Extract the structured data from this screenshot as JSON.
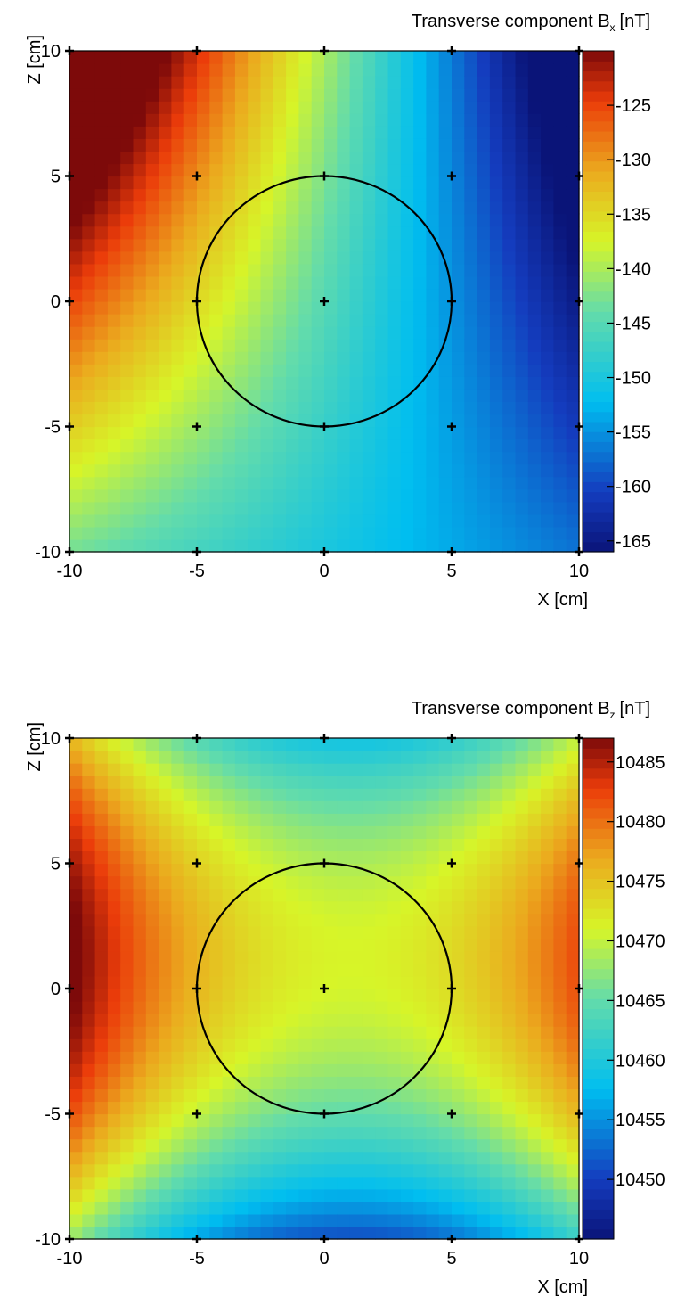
{
  "chart_data": [
    {
      "type": "heatmap",
      "title_main": "Transverse component B",
      "title_sub": "x",
      "title_unit": "[nT]",
      "xlabel": "X [cm]",
      "ylabel": "Z [cm]",
      "xlim": [
        -10,
        10
      ],
      "ylim": [
        -10,
        10
      ],
      "xticks": [
        "-10",
        "-5",
        "0",
        "5",
        "10"
      ],
      "yticks": [
        "10",
        "5",
        "0",
        "-5",
        "-10"
      ],
      "zlim": [
        -166,
        -120
      ],
      "colorbar_ticks": [
        "-125",
        "-130",
        "-135",
        "-140",
        "-145",
        "-150",
        "-155",
        "-160",
        "-165"
      ],
      "field_model": {
        "base": -145,
        "gx": 0,
        "gz": 0,
        "kx": -2.0,
        "kz": 0.5,
        "kxz": -0.13,
        "kxx": 0,
        "kzz": 0,
        "kxxz": 0,
        "kxzz": 0
      },
      "circle": {
        "center": [
          0,
          0
        ],
        "radius": 5
      },
      "markers": [
        [
          -10,
          10
        ],
        [
          -5,
          10
        ],
        [
          0,
          10
        ],
        [
          5,
          10
        ],
        [
          10,
          10
        ],
        [
          -10,
          5
        ],
        [
          -5,
          5
        ],
        [
          0,
          5
        ],
        [
          5,
          5
        ],
        [
          10,
          5
        ],
        [
          -10,
          0
        ],
        [
          -5,
          0
        ],
        [
          0,
          0
        ],
        [
          5,
          0
        ],
        [
          10,
          0
        ],
        [
          -10,
          -5
        ],
        [
          -5,
          -5
        ],
        [
          0,
          -5
        ],
        [
          5,
          -5
        ],
        [
          10,
          -5
        ],
        [
          -10,
          -10
        ],
        [
          -5,
          -10
        ],
        [
          0,
          -10
        ],
        [
          5,
          -10
        ],
        [
          10,
          -10
        ]
      ]
    },
    {
      "type": "heatmap",
      "title_main": "Transverse component B",
      "title_sub": "z",
      "title_unit": "[nT]",
      "xlabel": "X [cm]",
      "ylabel": "Z [cm]",
      "xlim": [
        -10,
        10
      ],
      "ylim": [
        -10,
        10
      ],
      "xticks": [
        "-10",
        "-5",
        "0",
        "5",
        "10"
      ],
      "yticks": [
        "10",
        "5",
        "0",
        "-5",
        "-10"
      ],
      "zlim": [
        10445,
        10487
      ],
      "colorbar_ticks": [
        "10485",
        "10480",
        "10475",
        "10470",
        "10465",
        "10460",
        "10455",
        "10450"
      ],
      "field_model": {
        "base": 10471,
        "gx": 0,
        "gz": 0.4,
        "kx": -0.3,
        "kz": 0,
        "kxz": 0,
        "kxx": 0.14,
        "kzz": -0.16,
        "kxxz": 0,
        "kxzz": 0
      },
      "circle": {
        "center": [
          0,
          0
        ],
        "radius": 5
      },
      "markers": [
        [
          -10,
          10
        ],
        [
          -5,
          10
        ],
        [
          0,
          10
        ],
        [
          5,
          10
        ],
        [
          10,
          10
        ],
        [
          -10,
          5
        ],
        [
          -5,
          5
        ],
        [
          0,
          5
        ],
        [
          5,
          5
        ],
        [
          10,
          5
        ],
        [
          -10,
          0
        ],
        [
          -5,
          0
        ],
        [
          0,
          0
        ],
        [
          5,
          0
        ],
        [
          10,
          0
        ],
        [
          -10,
          -5
        ],
        [
          -5,
          -5
        ],
        [
          0,
          -5
        ],
        [
          5,
          -5
        ],
        [
          10,
          -5
        ],
        [
          -10,
          -10
        ],
        [
          -5,
          -10
        ],
        [
          0,
          -10
        ],
        [
          5,
          -10
        ],
        [
          10,
          -10
        ]
      ]
    }
  ]
}
